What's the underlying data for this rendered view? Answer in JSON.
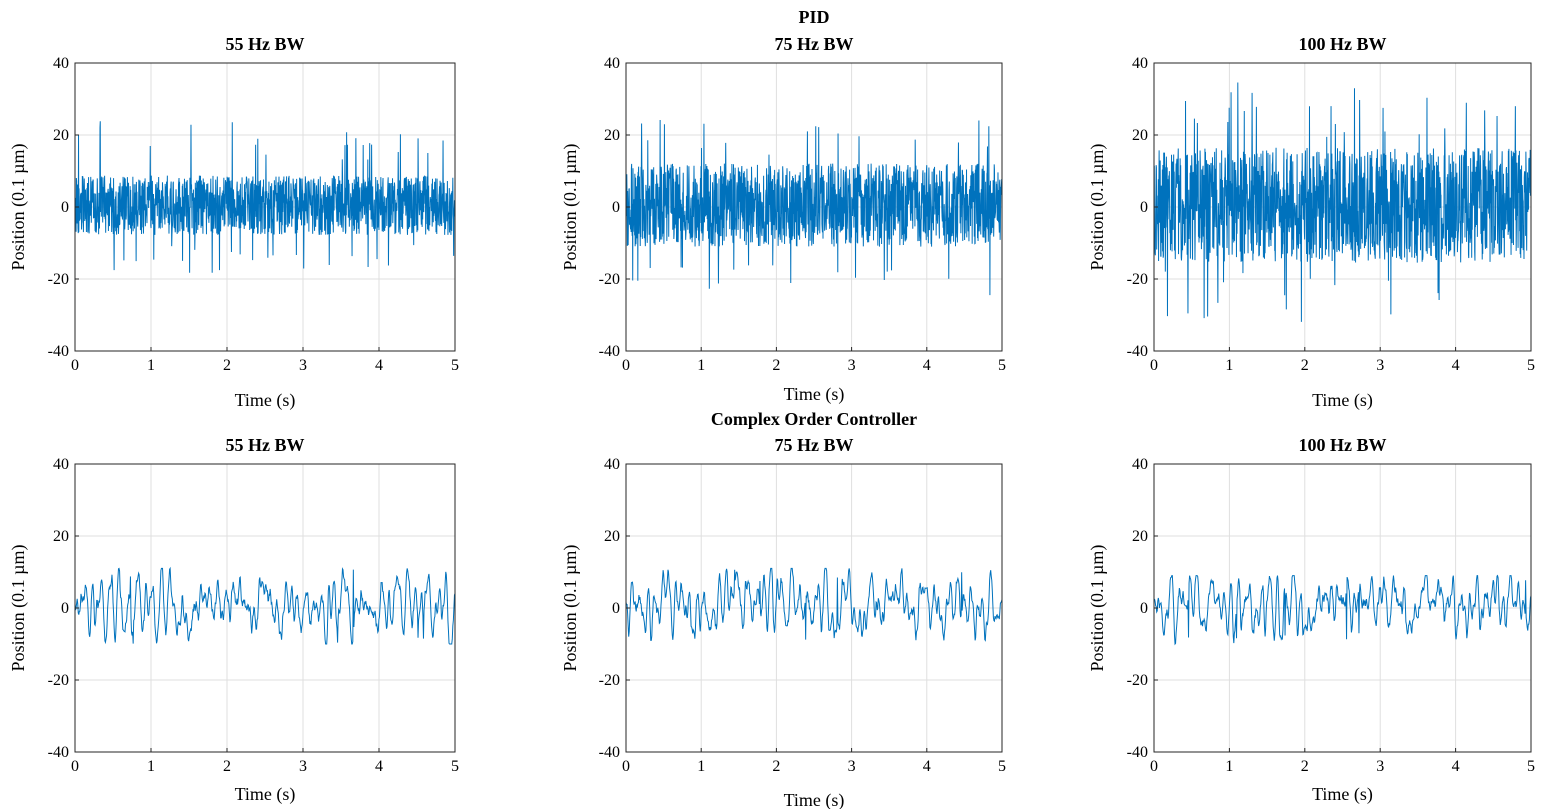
{
  "figure": {
    "top_title": "PID",
    "middle_title": "Complex Order Controller"
  },
  "colors": {
    "line": "#0072BD",
    "grid": "#dfdfdf",
    "axis": "#262626"
  },
  "chart_data": [
    {
      "type": "line",
      "title": "55 Hz BW",
      "xlabel": "Time (s)",
      "ylabel": "Position (0.1 µm)",
      "xlim": [
        0,
        5
      ],
      "ylim": [
        -40,
        40
      ],
      "xticks": [
        0,
        1,
        2,
        3,
        4,
        5
      ],
      "yticks": [
        -40,
        -20,
        0,
        20,
        40
      ],
      "grid": true,
      "series": [
        {
          "summary": {
            "peak_max": 24,
            "peak_min": -19,
            "typical_band": [
              -7,
              8
            ]
          }
        }
      ]
    },
    {
      "type": "line",
      "title": "75 Hz BW",
      "xlabel": "Time (s)",
      "ylabel": "Position (0.1 µm)",
      "xlim": [
        0,
        5
      ],
      "ylim": [
        -40,
        40
      ],
      "xticks": [
        0,
        1,
        2,
        3,
        4,
        5
      ],
      "yticks": [
        -40,
        -20,
        0,
        20,
        40
      ],
      "grid": true,
      "series": [
        {
          "summary": {
            "peak_max": 25,
            "peak_min": -25,
            "typical_band": [
              -10,
              11
            ]
          }
        }
      ]
    },
    {
      "type": "line",
      "title": "100 Hz BW",
      "xlabel": "Time (s)",
      "ylabel": "Position (0.1 µm)",
      "xlim": [
        0,
        5
      ],
      "ylim": [
        -40,
        40
      ],
      "xticks": [
        0,
        1,
        2,
        3,
        4,
        5
      ],
      "yticks": [
        -40,
        -20,
        0,
        20,
        40
      ],
      "grid": true,
      "series": [
        {
          "summary": {
            "peak_max": 35,
            "peak_min": -32,
            "typical_band": [
              -14,
              15
            ]
          }
        }
      ]
    },
    {
      "type": "line",
      "title": "55 Hz BW",
      "xlabel": "Time (s)",
      "ylabel": "Position (0.1 µm)",
      "xlim": [
        0,
        5
      ],
      "ylim": [
        -40,
        40
      ],
      "xticks": [
        0,
        1,
        2,
        3,
        4,
        5
      ],
      "yticks": [
        -40,
        -20,
        0,
        20,
        40
      ],
      "grid": true,
      "series": [
        {
          "summary": {
            "peak_max": 11,
            "peak_min": -10,
            "typical_band": [
              -4,
              5
            ]
          }
        }
      ]
    },
    {
      "type": "line",
      "title": "75 Hz BW",
      "xlabel": "Time (s)",
      "ylabel": "Position (0.1 µm)",
      "xlim": [
        0,
        5
      ],
      "ylim": [
        -40,
        40
      ],
      "xticks": [
        0,
        1,
        2,
        3,
        4,
        5
      ],
      "yticks": [
        -40,
        -20,
        0,
        20,
        40
      ],
      "grid": true,
      "series": [
        {
          "summary": {
            "peak_max": 11,
            "peak_min": -9,
            "typical_band": [
              -4,
              5
            ]
          }
        }
      ]
    },
    {
      "type": "line",
      "title": "100 Hz BW",
      "xlabel": "Time (s)",
      "ylabel": "Position (0.1 µm)",
      "xlim": [
        0,
        5
      ],
      "ylim": [
        -40,
        40
      ],
      "xticks": [
        0,
        1,
        2,
        3,
        4,
        5
      ],
      "yticks": [
        -40,
        -20,
        0,
        20,
        40
      ],
      "grid": true,
      "series": [
        {
          "summary": {
            "peak_max": 9,
            "peak_min": -10,
            "typical_band": [
              -4,
              5
            ]
          }
        }
      ]
    }
  ]
}
